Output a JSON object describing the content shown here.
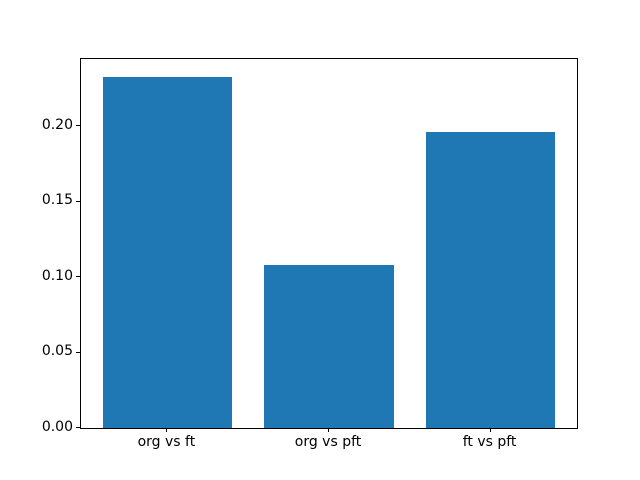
{
  "figure": {
    "background": "#ffffff",
    "spine_color": "#000000",
    "tick_color": "#000000",
    "text_color": "#000000"
  },
  "chart_data": {
    "type": "bar",
    "categories": [
      "org vs ft",
      "org vs pft",
      "ft vs pft"
    ],
    "values": [
      0.233,
      0.108,
      0.196
    ],
    "title": "",
    "xlabel": "",
    "ylabel": "",
    "bar_color": "#1f77b4",
    "bar_width_fraction": 0.8,
    "xlim": [
      -0.535,
      2.535
    ],
    "ylim": [
      0,
      0.2447
    ],
    "yticks": [
      0.0,
      0.05,
      0.1,
      0.15,
      0.2
    ],
    "ytick_labels": [
      "0.00",
      "0.05",
      "0.10",
      "0.15",
      "0.20"
    ],
    "grid": false,
    "legend": "none"
  }
}
